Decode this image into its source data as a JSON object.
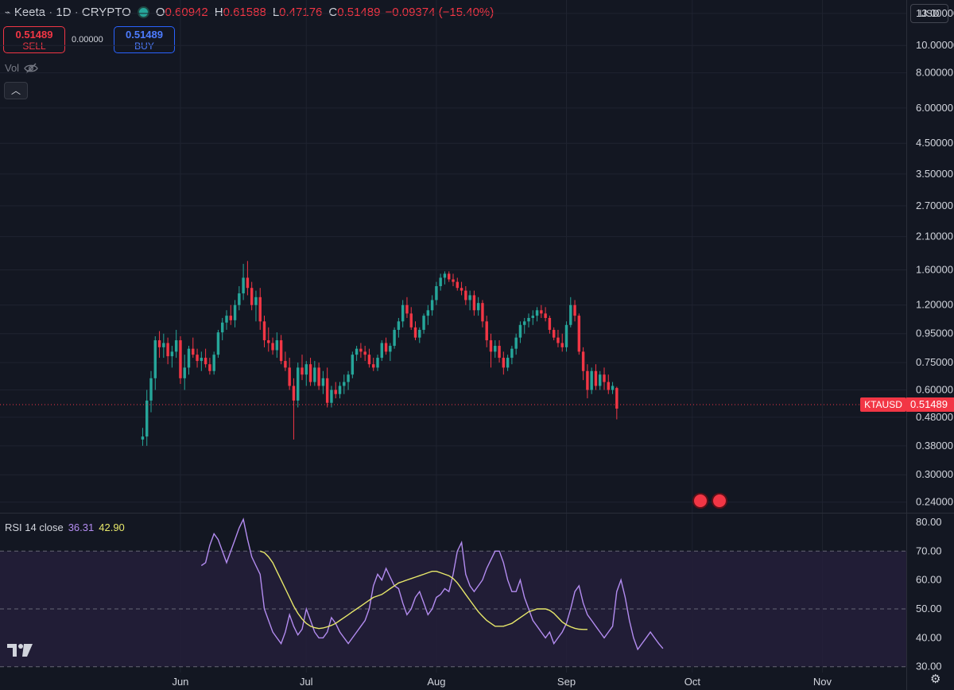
{
  "header": {
    "symbol": "Keeta · 1D · CRYPTO",
    "o_label": "O",
    "o_value": "0.60942",
    "h_label": "H",
    "h_value": "0.61588",
    "l_label": "L",
    "l_value": "0.47176",
    "c_label": "C",
    "c_value": "0.51489",
    "change": "−0.09374 (−15.40%)"
  },
  "trade": {
    "sell_price": "0.51489",
    "sell_label": "SELL",
    "spread": "0.00000",
    "buy_price": "0.51489",
    "buy_label": "BUY"
  },
  "vol_label": "Vol",
  "currency": "USD",
  "price_tag": "0.51489",
  "symbol_tag": "KTAUSD",
  "rsi_legend": {
    "label": "RSI 14 close",
    "rsi": "36.31",
    "ma": "42.90"
  },
  "colors": {
    "up": "#26a69a",
    "down": "#f23645",
    "rsi": "#b38cf0",
    "rsi_ma": "#e8e86a",
    "band": "#251f3a"
  },
  "chart_data": [
    {
      "type": "candlestick",
      "title": "Keeta · 1D · CRYPTO",
      "yscale": "log",
      "ylim": [
        0.22,
        14.5
      ],
      "y_ticks": [
        "13.00000",
        "10.00000",
        "8.00000",
        "6.00000",
        "4.50000",
        "3.50000",
        "2.70000",
        "2.10000",
        "1.60000",
        "1.20000",
        "0.95000",
        "0.75000",
        "0.60000",
        "0.48000",
        "0.38000",
        "0.30000",
        "0.24000"
      ],
      "x_ticks": [
        {
          "label": "Jun",
          "date": "2025-06-01"
        },
        {
          "label": "Jul",
          "date": "2025-07-01"
        },
        {
          "label": "Aug",
          "date": "2025-08-01"
        },
        {
          "label": "Sep",
          "date": "2025-09-01"
        },
        {
          "label": "Oct",
          "date": "2025-10-01"
        },
        {
          "label": "Nov",
          "date": "2025-11-01"
        }
      ],
      "xlim": [
        "2025-04-19",
        "2025-11-21"
      ],
      "last_price": 0.51489,
      "candles_ohlc_from_2025-05-23": [
        [
          0.4,
          0.44,
          0.38,
          0.41
        ],
        [
          0.41,
          0.6,
          0.38,
          0.55
        ],
        [
          0.55,
          0.7,
          0.5,
          0.66
        ],
        [
          0.66,
          0.93,
          0.6,
          0.9
        ],
        [
          0.9,
          0.97,
          0.78,
          0.85
        ],
        [
          0.85,
          0.95,
          0.78,
          0.88
        ],
        [
          0.88,
          0.92,
          0.74,
          0.79
        ],
        [
          0.79,
          0.86,
          0.72,
          0.82
        ],
        [
          0.82,
          0.98,
          0.78,
          0.9
        ],
        [
          0.9,
          0.93,
          0.63,
          0.66
        ],
        [
          0.66,
          0.8,
          0.6,
          0.72
        ],
        [
          0.72,
          0.86,
          0.68,
          0.84
        ],
        [
          0.84,
          0.92,
          0.78,
          0.8
        ],
        [
          0.8,
          0.84,
          0.72,
          0.76
        ],
        [
          0.76,
          0.82,
          0.7,
          0.78
        ],
        [
          0.78,
          0.84,
          0.72,
          0.74
        ],
        [
          0.74,
          0.78,
          0.68,
          0.7
        ],
        [
          0.7,
          0.82,
          0.68,
          0.8
        ],
        [
          0.8,
          0.98,
          0.78,
          0.96
        ],
        [
          0.96,
          1.08,
          0.9,
          1.04
        ],
        [
          1.04,
          1.15,
          0.98,
          1.1
        ],
        [
          1.1,
          1.2,
          1.02,
          1.06
        ],
        [
          1.06,
          1.25,
          1.0,
          1.2
        ],
        [
          1.2,
          1.4,
          1.15,
          1.32
        ],
        [
          1.32,
          1.68,
          1.25,
          1.5
        ],
        [
          1.5,
          1.72,
          1.3,
          1.38
        ],
        [
          1.38,
          1.45,
          1.15,
          1.2
        ],
        [
          1.2,
          1.35,
          1.05,
          1.28
        ],
        [
          1.28,
          1.38,
          0.98,
          1.05
        ],
        [
          1.05,
          1.1,
          0.85,
          0.9
        ],
        [
          0.9,
          1.0,
          0.82,
          0.88
        ],
        [
          0.88,
          0.92,
          0.8,
          0.83
        ],
        [
          0.83,
          0.96,
          0.78,
          0.9
        ],
        [
          0.9,
          0.94,
          0.74,
          0.76
        ],
        [
          0.76,
          0.82,
          0.7,
          0.72
        ],
        [
          0.72,
          0.78,
          0.6,
          0.62
        ],
        [
          0.62,
          0.66,
          0.4,
          0.55
        ],
        [
          0.55,
          0.75,
          0.52,
          0.72
        ],
        [
          0.72,
          0.8,
          0.65,
          0.68
        ],
        [
          0.68,
          0.76,
          0.62,
          0.74
        ],
        [
          0.74,
          0.78,
          0.62,
          0.64
        ],
        [
          0.64,
          0.76,
          0.62,
          0.72
        ],
        [
          0.72,
          0.75,
          0.6,
          0.62
        ],
        [
          0.62,
          0.7,
          0.58,
          0.66
        ],
        [
          0.66,
          0.72,
          0.52,
          0.54
        ],
        [
          0.54,
          0.62,
          0.52,
          0.6
        ],
        [
          0.6,
          0.64,
          0.56,
          0.58
        ],
        [
          0.58,
          0.64,
          0.56,
          0.62
        ],
        [
          0.62,
          0.68,
          0.58,
          0.64
        ],
        [
          0.64,
          0.7,
          0.6,
          0.68
        ],
        [
          0.68,
          0.82,
          0.66,
          0.8
        ],
        [
          0.8,
          0.86,
          0.76,
          0.84
        ],
        [
          0.84,
          0.88,
          0.78,
          0.82
        ],
        [
          0.82,
          0.86,
          0.76,
          0.8
        ],
        [
          0.8,
          0.84,
          0.72,
          0.74
        ],
        [
          0.74,
          0.78,
          0.7,
          0.72
        ],
        [
          0.72,
          0.8,
          0.7,
          0.78
        ],
        [
          0.78,
          0.9,
          0.76,
          0.88
        ],
        [
          0.88,
          0.92,
          0.8,
          0.82
        ],
        [
          0.82,
          0.88,
          0.76,
          0.86
        ],
        [
          0.86,
          1.0,
          0.84,
          0.98
        ],
        [
          0.98,
          1.08,
          0.92,
          1.05
        ],
        [
          1.05,
          1.25,
          1.0,
          1.2
        ],
        [
          1.2,
          1.28,
          1.08,
          1.12
        ],
        [
          1.12,
          1.18,
          0.98,
          1.0
        ],
        [
          1.0,
          1.05,
          0.9,
          0.92
        ],
        [
          0.92,
          1.0,
          0.88,
          0.98
        ],
        [
          0.98,
          1.12,
          0.95,
          1.1
        ],
        [
          1.1,
          1.2,
          1.02,
          1.15
        ],
        [
          1.15,
          1.3,
          1.1,
          1.25
        ],
        [
          1.25,
          1.45,
          1.2,
          1.4
        ],
        [
          1.4,
          1.55,
          1.35,
          1.5
        ],
        [
          1.5,
          1.58,
          1.42,
          1.55
        ],
        [
          1.55,
          1.58,
          1.45,
          1.48
        ],
        [
          1.48,
          1.55,
          1.4,
          1.45
        ],
        [
          1.45,
          1.5,
          1.35,
          1.38
        ],
        [
          1.38,
          1.45,
          1.3,
          1.35
        ],
        [
          1.35,
          1.4,
          1.2,
          1.25
        ],
        [
          1.25,
          1.35,
          1.15,
          1.3
        ],
        [
          1.3,
          1.35,
          1.1,
          1.15
        ],
        [
          1.15,
          1.28,
          1.1,
          1.22
        ],
        [
          1.22,
          1.25,
          1.0,
          1.05
        ],
        [
          1.05,
          1.1,
          0.85,
          0.9
        ],
        [
          0.9,
          0.95,
          0.72,
          0.82
        ],
        [
          0.82,
          0.9,
          0.78,
          0.86
        ],
        [
          0.86,
          0.9,
          0.75,
          0.78
        ],
        [
          0.78,
          0.82,
          0.68,
          0.72
        ],
        [
          0.72,
          0.8,
          0.7,
          0.78
        ],
        [
          0.78,
          0.86,
          0.74,
          0.84
        ],
        [
          0.84,
          0.95,
          0.8,
          0.92
        ],
        [
          0.92,
          1.05,
          0.88,
          1.02
        ],
        [
          1.02,
          1.08,
          0.95,
          1.05
        ],
        [
          1.05,
          1.12,
          1.0,
          1.08
        ],
        [
          1.08,
          1.15,
          1.02,
          1.1
        ],
        [
          1.1,
          1.18,
          1.05,
          1.15
        ],
        [
          1.15,
          1.2,
          1.08,
          1.12
        ],
        [
          1.12,
          1.18,
          1.05,
          1.08
        ],
        [
          1.08,
          1.1,
          0.95,
          0.98
        ],
        [
          0.98,
          1.0,
          0.9,
          0.92
        ],
        [
          0.92,
          0.98,
          0.85,
          0.88
        ],
        [
          0.88,
          0.95,
          0.82,
          0.85
        ],
        [
          0.85,
          1.05,
          0.82,
          1.02
        ],
        [
          1.02,
          1.28,
          1.0,
          1.2
        ],
        [
          1.2,
          1.25,
          1.05,
          1.1
        ],
        [
          1.1,
          1.12,
          0.8,
          0.82
        ],
        [
          0.82,
          0.85,
          0.65,
          0.7
        ],
        [
          0.7,
          0.74,
          0.56,
          0.6
        ],
        [
          0.6,
          0.72,
          0.58,
          0.7
        ],
        [
          0.7,
          0.74,
          0.6,
          0.62
        ],
        [
          0.62,
          0.7,
          0.6,
          0.68
        ],
        [
          0.68,
          0.72,
          0.6,
          0.64
        ],
        [
          0.64,
          0.68,
          0.58,
          0.6
        ],
        [
          0.6,
          0.64,
          0.58,
          0.62
        ],
        [
          0.60942,
          0.61588,
          0.47176,
          0.51489
        ]
      ]
    },
    {
      "type": "line",
      "title": "RSI 14 close",
      "ylim": [
        28,
        83
      ],
      "y_ticks": [
        "80.00",
        "70.00",
        "60.00",
        "50.00",
        "40.00",
        "30.00"
      ],
      "band": [
        30,
        70
      ],
      "levels": [
        30,
        50,
        70
      ],
      "series": [
        {
          "name": "RSI",
          "x_start": "2025-06-06",
          "values": [
            65,
            66,
            72,
            76,
            74,
            70,
            66,
            70,
            74,
            78,
            81,
            74,
            68,
            65,
            62,
            50,
            46,
            42,
            40,
            38,
            42,
            48,
            44,
            41,
            43,
            50,
            46,
            42,
            40,
            40,
            42,
            47,
            45,
            42,
            40,
            38,
            40,
            42,
            44,
            46,
            50,
            58,
            62,
            60,
            64,
            61,
            58,
            57,
            52,
            48,
            50,
            54,
            56,
            52,
            48,
            50,
            54,
            55,
            57,
            56,
            62,
            70,
            73,
            62,
            58,
            56,
            58,
            60,
            64,
            67,
            70,
            70,
            66,
            60,
            56,
            56,
            60,
            54,
            50,
            46,
            44,
            42,
            40,
            42,
            38,
            40,
            42,
            45,
            50,
            56,
            58,
            52,
            48,
            46,
            44,
            42,
            40,
            42,
            44,
            56,
            60,
            54,
            46,
            40,
            36,
            38,
            40,
            42,
            40,
            38,
            36.31
          ]
        },
        {
          "name": "RSI-based MA",
          "x_start": "2025-06-20",
          "values": [
            70,
            69.5,
            68,
            66,
            63,
            60,
            57,
            54,
            51,
            48.5,
            46.5,
            45,
            44,
            43.5,
            43.2,
            43.4,
            43.8,
            44.3,
            45,
            46,
            47,
            48,
            49,
            50,
            51,
            52,
            53,
            54,
            54.5,
            55,
            56,
            57,
            58,
            59,
            59.5,
            60,
            60.5,
            61,
            61.5,
            62,
            62.5,
            63,
            63,
            62.5,
            62,
            61.5,
            60.5,
            59,
            57,
            55,
            53,
            51,
            49,
            47.5,
            46,
            45,
            44,
            44,
            44,
            44.5,
            45,
            46,
            47,
            48,
            49,
            49.5,
            50,
            50,
            50,
            49.5,
            48.5,
            47,
            45.5,
            44.5,
            43.8,
            43.3,
            43,
            42.9,
            42.9
          ]
        }
      ]
    }
  ]
}
